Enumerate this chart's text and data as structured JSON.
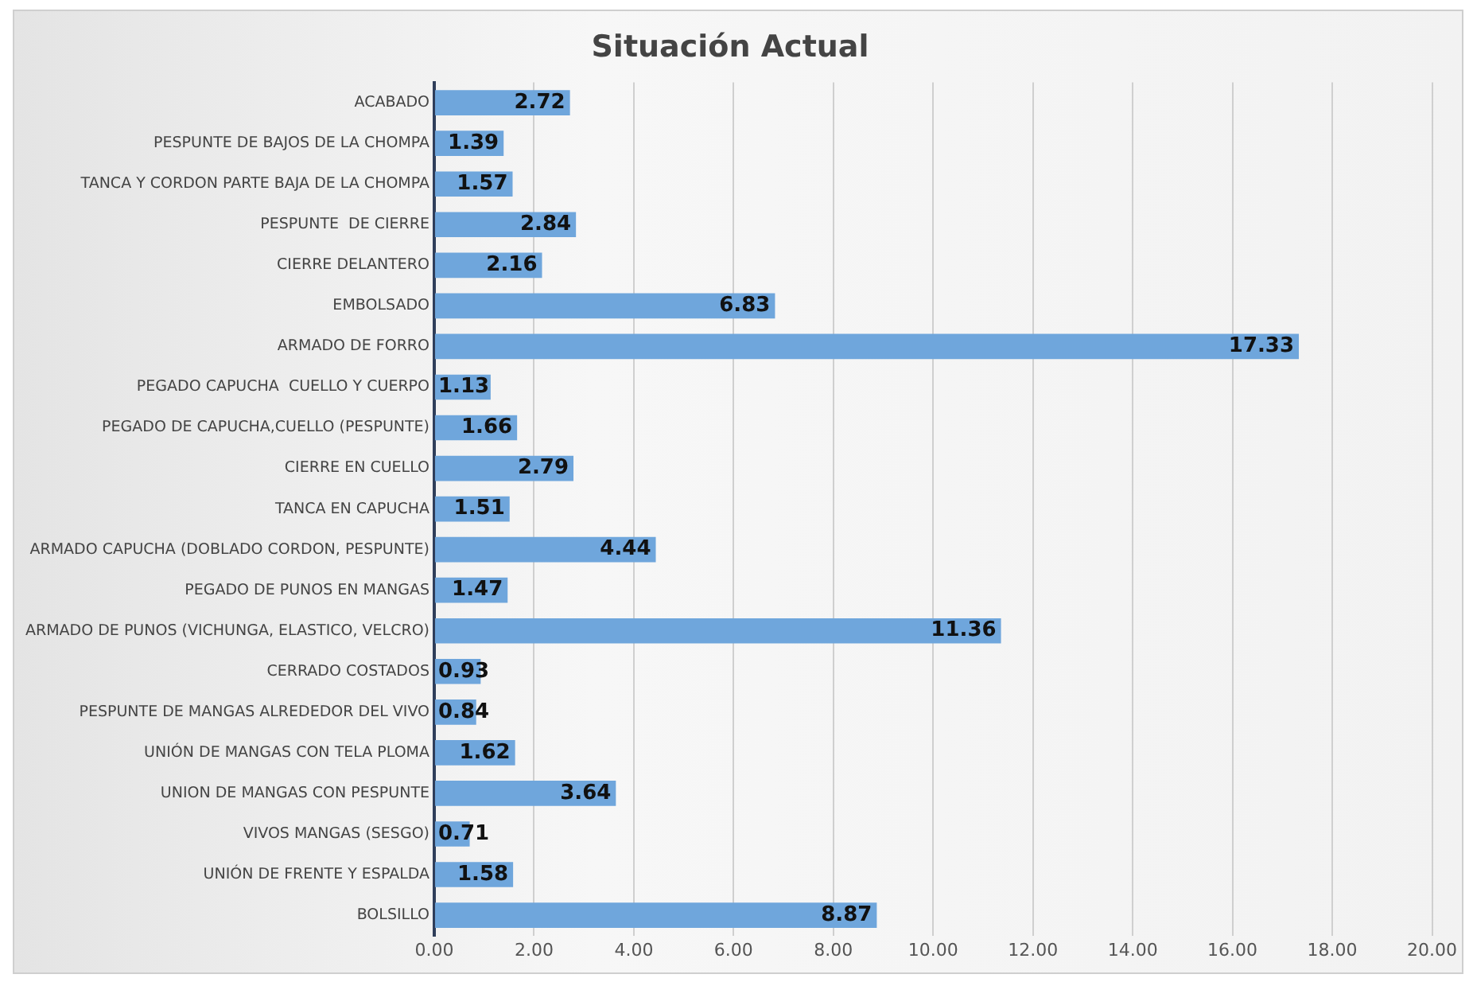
{
  "chart_data": {
    "type": "bar",
    "orientation": "horizontal",
    "title": "Situación Actual",
    "categories": [
      "ACABADO",
      "PESPUNTE DE BAJOS DE LA CHOMPA",
      "TANCA Y CORDON PARTE BAJA DE LA CHOMPA",
      "PESPUNTE  DE CIERRE",
      "CIERRE DELANTERO",
      "EMBOLSADO",
      "ARMADO DE FORRO",
      "PEGADO CAPUCHA  CUELLO Y CUERPO",
      "PEGADO DE CAPUCHA,CUELLO (PESPUNTE)",
      "CIERRE EN CUELLO",
      "TANCA EN CAPUCHA",
      "ARMADO CAPUCHA (DOBLADO CORDON, PESPUNTE)",
      "PEGADO DE PUNOS EN MANGAS",
      "ARMADO DE PUNOS (VICHUNGA, ELASTICO, VELCRO)",
      "CERRADO COSTADOS",
      "PESPUNTE DE MANGAS ALREDEDOR DEL VIVO",
      "UNIÓN DE MANGAS CON TELA PLOMA",
      "UNION DE MANGAS CON PESPUNTE",
      "VIVOS MANGAS (SESGO)",
      "UNIÓN DE FRENTE Y ESPALDA",
      "BOLSILLO"
    ],
    "values": [
      2.72,
      1.39,
      1.57,
      2.84,
      2.16,
      6.83,
      17.33,
      1.13,
      1.66,
      2.79,
      1.51,
      4.44,
      1.47,
      11.36,
      0.93,
      0.84,
      1.62,
      3.64,
      0.71,
      1.58,
      8.87
    ],
    "color": "#6fa6dc",
    "xlim": [
      0,
      20
    ],
    "xticks": [
      {
        "value": 0,
        "label": "0.00"
      },
      {
        "value": 2,
        "label": "2.00"
      },
      {
        "value": 4,
        "label": "4.00"
      },
      {
        "value": 6,
        "label": "6.00"
      },
      {
        "value": 8,
        "label": "8.00"
      },
      {
        "value": 10,
        "label": "10.00"
      },
      {
        "value": 12,
        "label": "12.00"
      },
      {
        "value": 14,
        "label": "14.00"
      },
      {
        "value": 16,
        "label": "16.00"
      },
      {
        "value": 18,
        "label": "18.00"
      },
      {
        "value": 20,
        "label": "20.00"
      }
    ],
    "grid": "x",
    "legend": false,
    "data_labels": true
  }
}
